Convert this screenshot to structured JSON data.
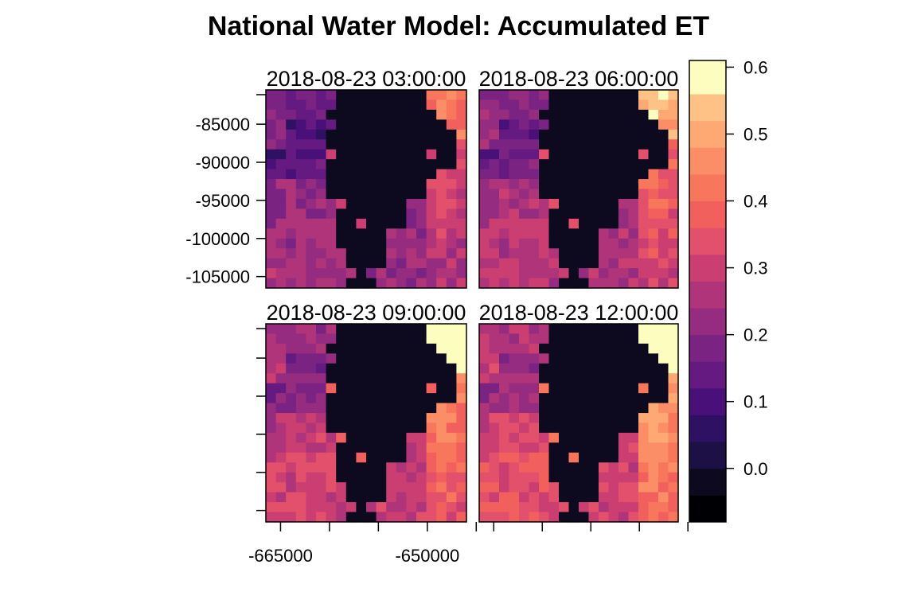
{
  "chart_data": {
    "type": "heatmap",
    "title": "National Water Model: Accumulated ET",
    "panels": [
      {
        "label": "2018-08-23 03:00:00",
        "time_step": 1
      },
      {
        "label": "2018-08-23 06:00:00",
        "time_step": 2
      },
      {
        "label": "2018-08-23 09:00:00",
        "time_step": 3
      },
      {
        "label": "2018-08-23 12:00:00",
        "time_step": 4
      }
    ],
    "grid": {
      "cols": 20,
      "rows": 20
    },
    "x_range": [
      -666500,
      -646000
    ],
    "y_range": [
      -106500,
      -80500
    ],
    "x_ticks": [
      -665000,
      -660000,
      -655000,
      -650000,
      -645000
    ],
    "x_tick_labels": [
      "-665000",
      "",
      "",
      "-650000",
      ""
    ],
    "y_ticks": [
      -85000,
      -90000,
      -95000,
      -100000,
      -105000
    ],
    "y_tick_labels": [
      "-85000",
      "-90000",
      "-95000",
      "-100000",
      "-105000"
    ],
    "colorbar": {
      "range": [
        -0.08,
        0.61
      ],
      "breaks": [
        -0.08,
        -0.04,
        0.0,
        0.04,
        0.08,
        0.12,
        0.16,
        0.2,
        0.24,
        0.28,
        0.32,
        0.36,
        0.4,
        0.44,
        0.48,
        0.52,
        0.56,
        0.61
      ],
      "colors": [
        "#000004",
        "#0d0a1f",
        "#1c1044",
        "#2f1163",
        "#4a1079",
        "#641a80",
        "#7b2382",
        "#952c80",
        "#b0347a",
        "#ca3e72",
        "#e2506c",
        "#f1605d",
        "#f8765c",
        "#fb8d67",
        "#fea873",
        "#fec287",
        "#fcfdbf"
      ],
      "ticks": [
        0.0,
        0.1,
        0.2,
        0.3,
        0.4,
        0.5,
        0.6
      ],
      "tick_labels": [
        "0.0",
        "0.1",
        "0.2",
        "0.3",
        "0.4",
        "0.5",
        "0.6"
      ]
    }
  }
}
